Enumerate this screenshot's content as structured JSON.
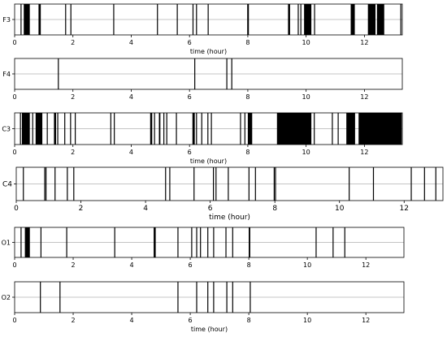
{
  "chart_data": [
    {
      "type": "event-raster",
      "channel": "F3",
      "xlabel": "time (hour)",
      "xlim": [
        0,
        13.3
      ],
      "xticks": [
        0,
        2,
        4,
        6,
        8,
        10,
        12
      ],
      "spikes": [
        0.22,
        0.33,
        0.88,
        1.75,
        1.93,
        3.4,
        4.9,
        5.58,
        6.12,
        6.24,
        6.64,
        8.02,
        9.42,
        9.73,
        9.82,
        10.29,
        13.25
      ],
      "blocks": [
        [
          0.32,
          0.52
        ],
        [
          0.82,
          0.88
        ],
        [
          7.98,
          8.03
        ],
        [
          9.38,
          9.45
        ],
        [
          9.93,
          10.18
        ],
        [
          11.53,
          11.67
        ],
        [
          12.12,
          12.38
        ],
        [
          12.43,
          12.68
        ]
      ]
    },
    {
      "type": "event-raster",
      "channel": "F4",
      "xlabel": "",
      "xlim": [
        0,
        13.3
      ],
      "xticks": [
        0,
        2,
        4,
        6,
        8,
        10,
        12
      ],
      "spikes": [
        1.5,
        6.18,
        7.28,
        7.45
      ],
      "blocks": []
    },
    {
      "type": "event-raster",
      "channel": "C3",
      "xlabel": "time (hour)",
      "xlim": [
        0,
        13.3
      ],
      "xticks": [
        0,
        2,
        4,
        6,
        8,
        10,
        12
      ],
      "spikes": [
        0.2,
        0.62,
        1.12,
        1.4,
        1.48,
        1.72,
        1.92,
        2.08,
        3.3,
        3.42,
        4.8,
        5.12,
        5.22,
        5.55,
        6.24,
        6.42,
        6.63,
        6.75,
        7.75,
        7.9,
        10.28,
        10.9,
        11.1
      ],
      "blocks": [
        [
          0.25,
          0.52
        ],
        [
          0.72,
          0.95
        ],
        [
          1.35,
          1.42
        ],
        [
          4.65,
          4.72
        ],
        [
          4.95,
          5.0
        ],
        [
          6.1,
          6.18
        ],
        [
          8.0,
          8.15
        ],
        [
          9.0,
          10.18
        ],
        [
          11.38,
          11.68
        ],
        [
          11.8,
          13.28
        ]
      ]
    },
    {
      "type": "event-raster",
      "channel": "C4",
      "xlabel": "time (hour)",
      "xlim": [
        0,
        13.2
      ],
      "xticks": [
        0,
        2,
        4,
        6,
        8,
        10,
        12
      ],
      "spikes": [
        0.22,
        0.88,
        0.92,
        1.2,
        1.58,
        1.78,
        4.62,
        4.75,
        5.5,
        6.1,
        6.18,
        6.56,
        7.2,
        7.4,
        7.98,
        8.02,
        10.3,
        11.05,
        12.22,
        12.63,
        12.98
      ],
      "blocks": []
    },
    {
      "type": "event-raster",
      "channel": "O1",
      "xlabel": "",
      "xlim": [
        0,
        13.3
      ],
      "xticks": [
        0,
        2,
        4,
        6,
        8,
        10,
        12
      ],
      "spikes": [
        0.22,
        0.9,
        1.78,
        3.42,
        5.58,
        6.05,
        6.22,
        6.35,
        6.6,
        6.8,
        7.22,
        7.45,
        8.02,
        10.3,
        10.88,
        11.28
      ],
      "blocks": [
        [
          0.35,
          0.52
        ],
        [
          4.75,
          4.82
        ],
        [
          8.0,
          8.05
        ]
      ]
    },
    {
      "type": "event-raster",
      "channel": "O2",
      "xlabel": "time (hour)",
      "xlim": [
        0,
        13.3
      ],
      "xticks": [
        0,
        2,
        4,
        6,
        8,
        10,
        12
      ],
      "spikes": [
        0.88,
        1.55,
        5.58,
        6.22,
        6.6,
        6.8,
        7.25,
        7.45,
        8.05
      ],
      "blocks": []
    }
  ]
}
